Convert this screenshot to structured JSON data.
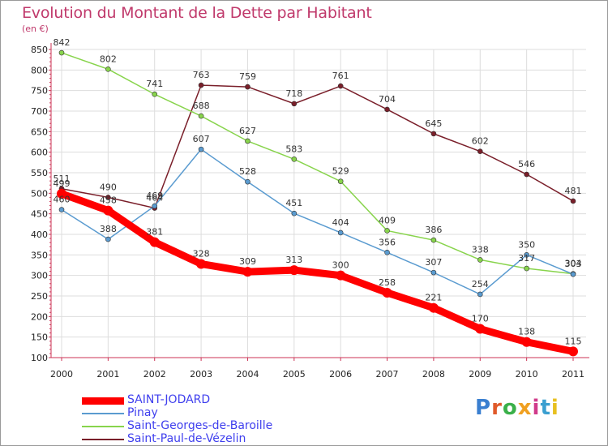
{
  "chart_data": {
    "type": "line",
    "title": "Evolution du Montant de la Dette par Habitant",
    "unit_label": "(en €)",
    "xlabel": "",
    "ylabel": "",
    "x": [
      2000,
      2001,
      2002,
      2003,
      2004,
      2005,
      2006,
      2007,
      2008,
      2009,
      2010,
      2011
    ],
    "ylim": [
      100,
      850
    ],
    "yticks": [
      100,
      150,
      200,
      250,
      300,
      350,
      400,
      450,
      500,
      550,
      600,
      650,
      700,
      750,
      800,
      850
    ],
    "grid": true,
    "legend_position": "bottom-left",
    "series": [
      {
        "name": "Saint-Paul-de-Vézelin",
        "color": "#7a1f2a",
        "values": [
          511,
          490,
          464,
          763,
          759,
          718,
          761,
          704,
          645,
          602,
          546,
          481
        ]
      },
      {
        "name": "Saint-Georges-de-Baroille",
        "color": "#88d44c",
        "values": [
          842,
          802,
          741,
          688,
          627,
          583,
          529,
          409,
          386,
          338,
          317,
          304
        ]
      },
      {
        "name": "Pinay",
        "color": "#5a9bd0",
        "values": [
          460,
          388,
          469,
          607,
          528,
          451,
          404,
          356,
          307,
          254,
          350,
          303
        ]
      },
      {
        "name": "SAINT-JODARD",
        "color": "#ff0000",
        "values": [
          499,
          458,
          381,
          328,
          309,
          313,
          300,
          258,
          221,
          170,
          138,
          115
        ]
      }
    ],
    "legend_order": [
      "SAINT-JODARD",
      "Pinay",
      "Saint-Georges-de-Baroille",
      "Saint-Paul-de-Vézelin"
    ]
  },
  "branding": {
    "logo_text": "Proxiti"
  }
}
